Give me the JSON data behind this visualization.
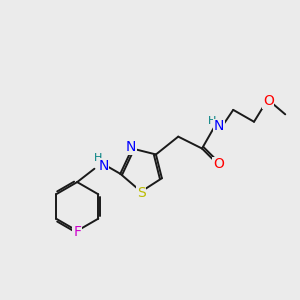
{
  "background_color": "#ebebeb",
  "bond_color": "#1a1a1a",
  "atom_colors": {
    "N": "#0000ff",
    "O": "#ff0000",
    "S": "#bbbb00",
    "F": "#cc00cc",
    "NH_teal": "#008080",
    "H_label": "#008080"
  },
  "font_size": 9,
  "bond_width": 1.4,
  "figsize": [
    3.0,
    3.0
  ],
  "dpi": 100,
  "xlim": [
    0,
    10
  ],
  "ylim": [
    0,
    10
  ]
}
